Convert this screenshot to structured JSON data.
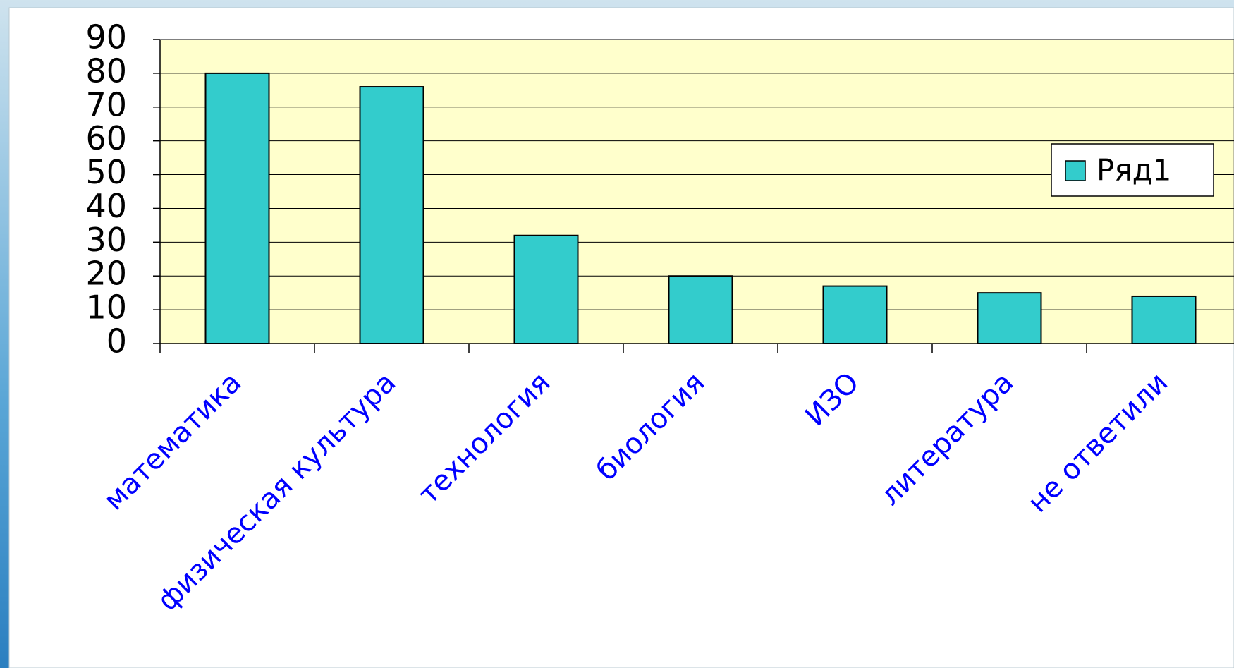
{
  "chart_data": {
    "type": "bar",
    "categories": [
      "математика",
      "физическая культура",
      "технология",
      "биология",
      "ИЗО",
      "литература",
      "не ответили"
    ],
    "series": [
      {
        "name": "Ряд1",
        "color": "#33cccc",
        "values": [
          80,
          76,
          32,
          20,
          17,
          15,
          14
        ]
      }
    ],
    "ylim": [
      0,
      90
    ],
    "yticks": [
      0,
      10,
      20,
      30,
      40,
      50,
      60,
      70,
      80,
      90
    ],
    "grid": true,
    "legend": "right"
  }
}
